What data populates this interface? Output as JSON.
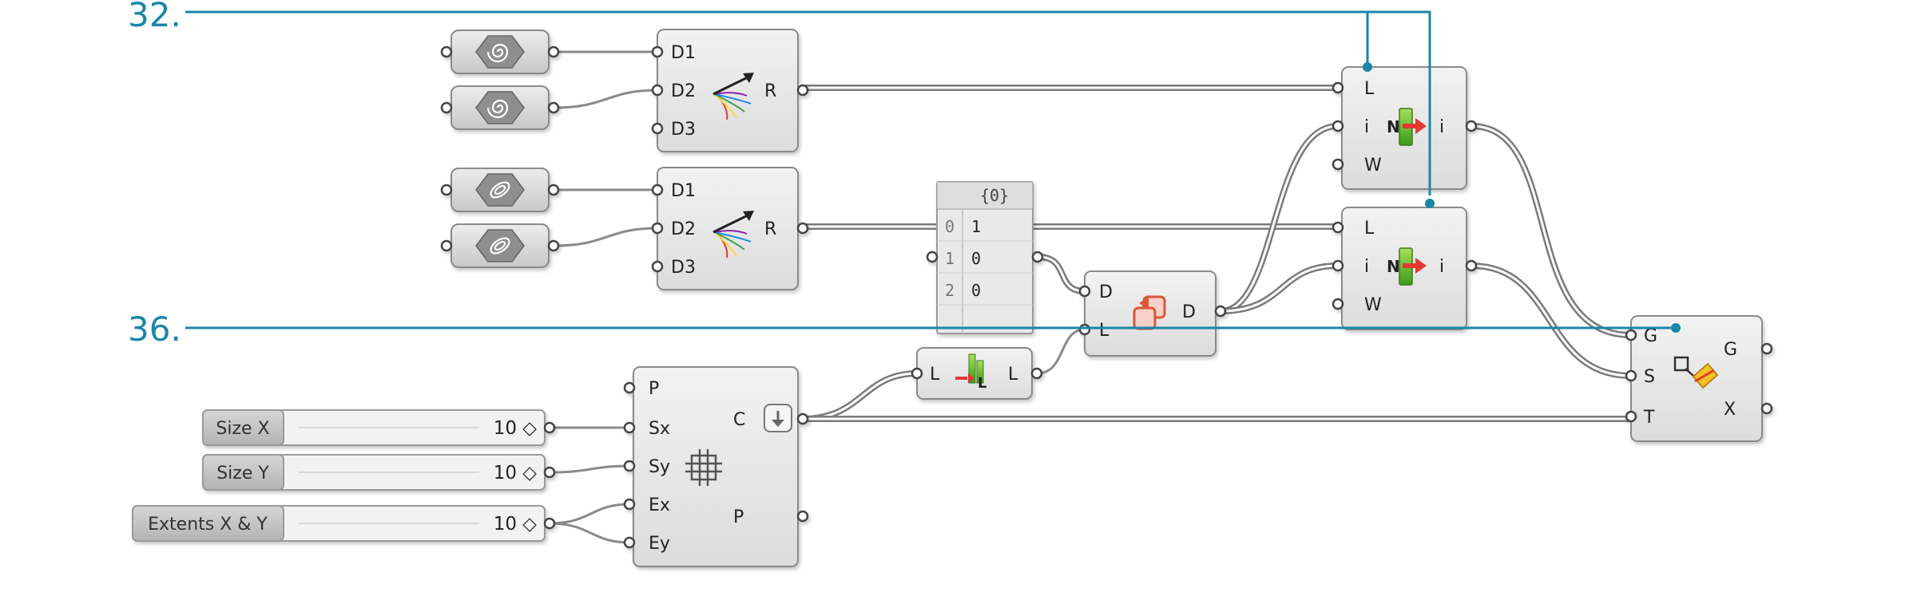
{
  "callouts": [
    "32.",
    "36."
  ],
  "components": {
    "gradient_1": {
      "inputs": [
        "D1",
        "D2",
        "D3"
      ],
      "output": "R"
    },
    "gradient_2": {
      "inputs": [
        "D1",
        "D2",
        "D3"
      ],
      "output": "R"
    },
    "rectangular_grid": {
      "inputs": [
        "P",
        "Sx",
        "Sy",
        "Ex",
        "Ey"
      ],
      "outputs": [
        "C",
        "P"
      ]
    },
    "list_length": {
      "input": "L",
      "output": "L"
    },
    "duplicate_data": {
      "inputs": [
        "D",
        "L"
      ],
      "output": "D"
    },
    "list_item_1": {
      "inputs": [
        "L",
        "i",
        "W"
      ],
      "output": "i",
      "icon_letter": "N"
    },
    "list_item_2": {
      "inputs": [
        "L",
        "i",
        "W"
      ],
      "output": "i",
      "icon_letter": "N"
    },
    "move": {
      "inputs": [
        "G",
        "S",
        "T"
      ],
      "outputs": [
        "G",
        "X"
      ]
    }
  },
  "panel": {
    "header": "{0}",
    "rows": [
      {
        "index": "0",
        "value": "1"
      },
      {
        "index": "1",
        "value": "0"
      },
      {
        "index": "2",
        "value": "0"
      }
    ]
  },
  "sliders": [
    {
      "label": "Size X",
      "value": "10 ◇"
    },
    {
      "label": "Size Y",
      "value": "10 ◇"
    },
    {
      "label": "Extents X & Y",
      "value": "10 ◇"
    }
  ],
  "colors": {
    "callout": "#1a86a8",
    "component_fill": "#e6e6e6",
    "component_stroke": "#8a8a8a",
    "wire": "#8c8c8c"
  },
  "icons": {
    "param_spiral": "spiral-icon",
    "param_surface": "surface-icon",
    "gradient": "color-gradient-arrow-icon",
    "grid": "rectangular-grid-icon",
    "list_length": "list-length-icon",
    "duplicate": "duplicate-data-icon",
    "list_item": "list-item-icon",
    "move": "move-icon"
  }
}
